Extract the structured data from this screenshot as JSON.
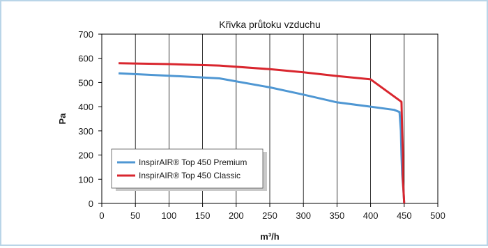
{
  "chart_data": {
    "type": "line",
    "title": "Křivka průtoku vzduchu",
    "xlabel": "m³/h",
    "ylabel": "Pa",
    "xlim": [
      0,
      500
    ],
    "ylim": [
      0,
      700
    ],
    "x_ticks": [
      0,
      50,
      100,
      150,
      200,
      250,
      300,
      350,
      400,
      450,
      500
    ],
    "y_ticks": [
      0,
      100,
      200,
      300,
      400,
      500,
      600,
      700
    ],
    "grid": "vertical",
    "legend_position": "bottom-left",
    "series": [
      {
        "name": "InspirAIR® Top 450 Premium",
        "color": "#4f97d3",
        "points": [
          [
            25,
            538
          ],
          [
            100,
            528
          ],
          [
            175,
            517
          ],
          [
            250,
            480
          ],
          [
            300,
            450
          ],
          [
            350,
            418
          ],
          [
            400,
            400
          ],
          [
            435,
            387
          ],
          [
            443,
            378
          ],
          [
            445,
            300
          ],
          [
            446,
            200
          ],
          [
            447,
            120
          ],
          [
            449,
            50
          ],
          [
            450,
            0
          ]
        ]
      },
      {
        "name": "InspirAIR® Top 450 Classic",
        "color": "#d9262e",
        "points": [
          [
            25,
            580
          ],
          [
            100,
            576
          ],
          [
            175,
            570
          ],
          [
            250,
            555
          ],
          [
            300,
            542
          ],
          [
            350,
            527
          ],
          [
            400,
            513
          ],
          [
            446,
            420
          ],
          [
            447,
            300
          ],
          [
            448,
            200
          ],
          [
            448,
            100
          ],
          [
            450,
            0
          ]
        ]
      }
    ]
  }
}
